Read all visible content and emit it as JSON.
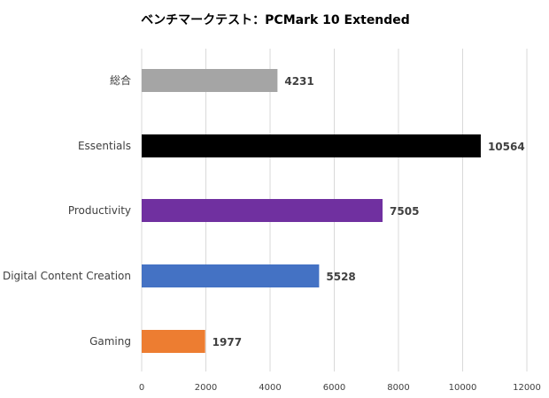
{
  "chart_data": {
    "type": "bar",
    "orientation": "horizontal",
    "title": "ベンチマークテスト：PCMark 10 Extended",
    "categories": [
      "総合",
      "Essentials",
      "Productivity",
      "Digital Content Creation",
      "Gaming"
    ],
    "values": [
      4231,
      10564,
      7505,
      5528,
      1977
    ],
    "colors": [
      "#a5a5a5",
      "#000000",
      "#7030a0",
      "#4472c4",
      "#ed7d31"
    ],
    "xlim": [
      0,
      12000
    ],
    "xticks": [
      0,
      2000,
      4000,
      6000,
      8000,
      10000,
      12000
    ],
    "grid": true,
    "legend": "none",
    "data_labels": true
  }
}
